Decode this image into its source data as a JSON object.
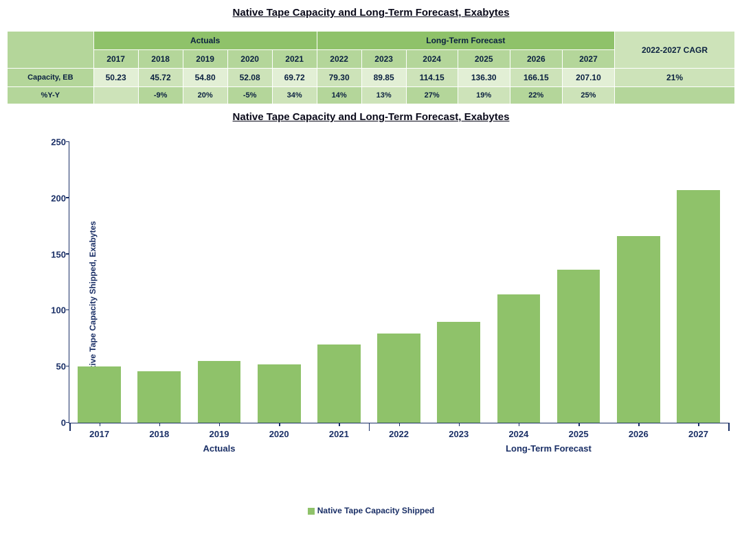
{
  "title_main": "Native Tape Capacity and Long-Term Forecast, Exabytes",
  "title_chart": "Native Tape Capacity and Long-Term Forecast, Exabytes",
  "table": {
    "group_headers": [
      "Actuals",
      "Long-Term Forecast"
    ],
    "group_spans": [
      5,
      6
    ],
    "cagr_header": "2022-2027 CAGR",
    "years": [
      "2017",
      "2018",
      "2019",
      "2020",
      "2021",
      "2022",
      "2023",
      "2024",
      "2025",
      "2026",
      "2027"
    ],
    "row_labels": [
      "Capacity, EB",
      "%Y-Y"
    ],
    "capacity": [
      "50.23",
      "45.72",
      "54.80",
      "52.08",
      "69.72",
      "79.30",
      "89.85",
      "114.15",
      "136.30",
      "166.15",
      "207.10"
    ],
    "yoy": [
      "",
      "-9%",
      "20%",
      "-5%",
      "34%",
      "14%",
      "13%",
      "27%",
      "19%",
      "22%",
      "25%"
    ],
    "cagr": "21%",
    "colors": {
      "header_dark": "#8fc26a",
      "header_mid": "#b4d69a",
      "header_light": "#cde3b9",
      "cell_alt": "#e2efd5",
      "text": "#0a2040",
      "border": "#ffffff"
    }
  },
  "chart": {
    "type": "bar",
    "y_axis_label": "Native Tape Capacity Shipped, Exabytes",
    "ylim": [
      0,
      250
    ],
    "yticks": [
      0,
      50,
      100,
      150,
      200,
      250
    ],
    "categories": [
      "2017",
      "2018",
      "2019",
      "2020",
      "2021",
      "2022",
      "2023",
      "2024",
      "2025",
      "2026",
      "2027"
    ],
    "values": [
      50.23,
      45.72,
      54.8,
      52.08,
      69.72,
      79.3,
      89.85,
      114.15,
      136.3,
      166.15,
      207.1
    ],
    "bar_color": "#8fc26a",
    "axis_color": "#1a2f66",
    "text_color": "#1a2f66",
    "background_color": "#ffffff",
    "groups": [
      {
        "label": "Actuals",
        "start": 0,
        "end": 5
      },
      {
        "label": "Long-Term Forecast",
        "start": 5,
        "end": 11
      }
    ],
    "legend_label": "Native Tape Capacity Shipped",
    "bar_width_ratio": 0.72,
    "tick_fontsize": 13,
    "label_fontsize": 12
  }
}
